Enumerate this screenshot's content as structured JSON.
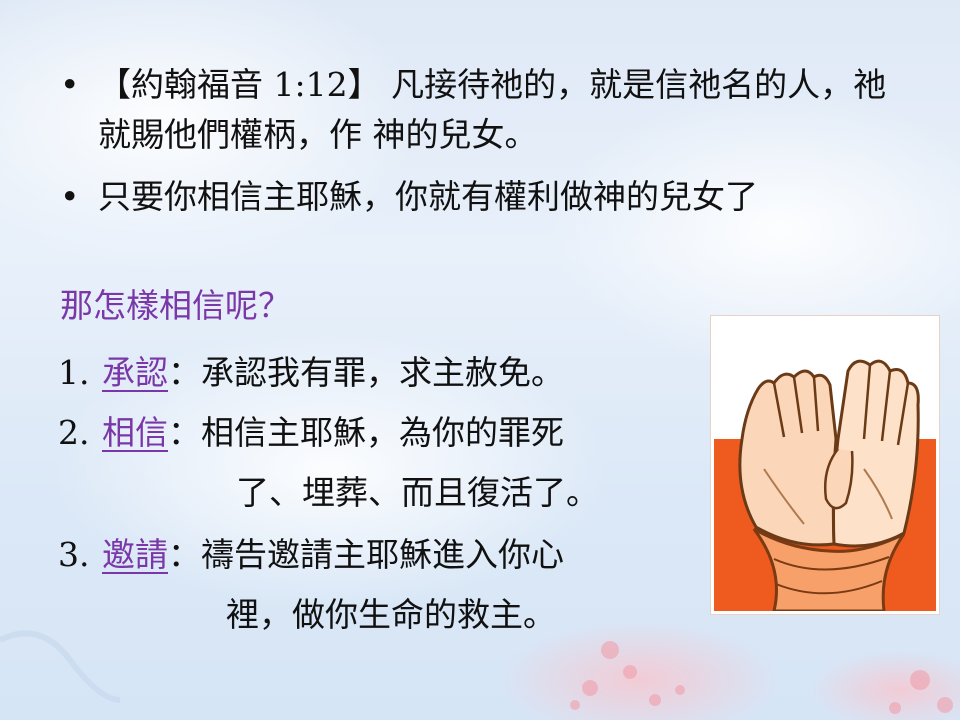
{
  "bullets": [
    {
      "dot": "•",
      "text": "【約翰福音 1:12】 凡接待祂的，就是信祂名的人，祂就賜他們權柄，作 神的兒女。"
    },
    {
      "dot": "•",
      "text": "只要你相信主耶穌，你就有權利做神的兒女了"
    }
  ],
  "question": "那怎樣相信呢？",
  "steps": [
    {
      "num": "1.",
      "keyword": "承認",
      "sep": "：",
      "text": "承認我有罪，求主赦免。",
      "cont": ""
    },
    {
      "num": "2.",
      "keyword": "相信",
      "sep": "：",
      "text": "相信主耶穌，為你的罪死",
      "cont": "了、埋葬、而且復活了。"
    },
    {
      "num": "3.",
      "keyword": "邀請",
      "sep": "：",
      "text": "禱告邀請主耶穌進入你心",
      "cont": "裡，做你生命的救主。"
    }
  ],
  "image": {
    "icon": "praying-hands-icon"
  },
  "colors": {
    "accent": "#7a37a8",
    "image_bg_top": "#ffffff",
    "image_bg_bottom": "#ef5a1f"
  }
}
